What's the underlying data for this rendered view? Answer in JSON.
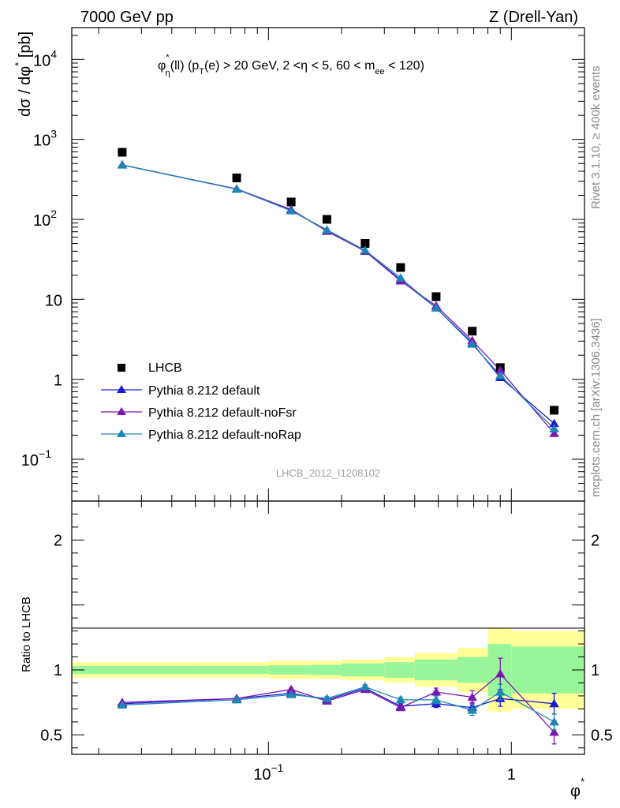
{
  "header": {
    "left_label": "7000 GeV pp",
    "right_label": "Z (Drell-Yan)"
  },
  "side_labels": {
    "rivet": "Rivet 3.1.10, ≥ 400k events",
    "mcplots": "mcplots.cern.ch [arXiv:1306.3436]"
  },
  "colors": {
    "data": "#000000",
    "default": "#1c1cd2",
    "noFsr": "#7a18b4",
    "noRap": "#1c87b4",
    "band_yellow": "#ffff99",
    "band_green": "#99f599"
  },
  "chart_data": [
    {
      "type": "scatter",
      "panel": "main",
      "title": "φ*η(ll) (pT(e) > 20 GeV, 2 <η < 5, 60 < mee < 120)",
      "title_parts": {
        "phi": "φ",
        "star": "*",
        "eta_sub": "η",
        "ll": "(ll) (p",
        "T_sub": "T",
        "rest": "(e) > 20 GeV, 2 <η < 5, 60 < m",
        "ee_sub": "ee",
        "end": " < 120)"
      },
      "ylabel": "dσ / dφ* [pb]",
      "ylabel_parts": {
        "main": "dσ / dφ",
        "star": "*",
        "unit": " [pb]"
      },
      "xlabel": "φ*",
      "xlabel_parts": {
        "phi": "φ",
        "star": "*"
      },
      "xscale": "log",
      "yscale": "log",
      "xlim": [
        0.0155,
        2.0
      ],
      "ylim": [
        0.03,
        25000
      ],
      "y_ticks": [
        {
          "value": 10000,
          "base": "10",
          "exp": "4"
        },
        {
          "value": 1000,
          "base": "10",
          "exp": "3"
        },
        {
          "value": 100,
          "base": "10",
          "exp": "2"
        },
        {
          "value": 10,
          "base": "10",
          "exp": ""
        },
        {
          "value": 1,
          "base": "1",
          "exp": ""
        },
        {
          "value": 0.1,
          "base": "10",
          "exp": "−1"
        }
      ],
      "x": [
        0.025,
        0.074,
        0.124,
        0.174,
        0.25,
        0.35,
        0.49,
        0.69,
        0.9,
        1.5
      ],
      "series": [
        {
          "name": "LHCB",
          "marker": "square",
          "color_key": "data",
          "values": [
            690,
            330,
            165,
            100,
            50,
            25,
            10.8,
            4.0,
            1.4,
            0.41
          ]
        },
        {
          "name": "Pythia 8.212 default",
          "marker": "triangle",
          "color_key": "default",
          "values": [
            480,
            240,
            130,
            72,
            40,
            17.5,
            7.8,
            2.85,
            1.05,
            0.28
          ]
        },
        {
          "name": "Pythia 8.212 default-noFsr",
          "marker": "triangle",
          "color_key": "noFsr",
          "values": [
            480,
            240,
            133,
            71,
            40,
            17.0,
            8.3,
            3.05,
            1.3,
            0.21
          ]
        },
        {
          "name": "Pythia 8.212 default-noRap",
          "marker": "triangle",
          "color_key": "noRap",
          "values": [
            478,
            238,
            128,
            74,
            41,
            18.5,
            7.8,
            2.75,
            1.12,
            0.24
          ]
        }
      ],
      "watermark": "LHCB_2012_I1208102",
      "legend_position": "bottom-left"
    },
    {
      "type": "line",
      "panel": "ratio",
      "ylabel": "Ratio to LHCB",
      "xscale": "log",
      "xlim": [
        0.0155,
        2.0
      ],
      "ylim": [
        0.35,
        2.3
      ],
      "y_ticks": [
        {
          "value": 2,
          "label": "2"
        },
        {
          "value": 1,
          "label": "1"
        },
        {
          "value": 0.5,
          "label": "0.5"
        }
      ],
      "x_ticks": [
        {
          "value": 0.1,
          "base": "10",
          "exp": "−1"
        },
        {
          "value": 1,
          "base": "1",
          "exp": ""
        }
      ],
      "bands": {
        "edges": [
          0.0155,
          0.05,
          0.1,
          0.15,
          0.2,
          0.3,
          0.4,
          0.6,
          0.8,
          1.0,
          2.0
        ],
        "yellow_halfwidth": [
          0.06,
          0.06,
          0.07,
          0.07,
          0.08,
          0.1,
          0.13,
          0.17,
          0.32,
          0.3
        ],
        "green_halfwidth": [
          0.03,
          0.03,
          0.035,
          0.04,
          0.05,
          0.06,
          0.08,
          0.1,
          0.2,
          0.18
        ]
      },
      "series": [
        {
          "name": "Pythia 8.212 default",
          "color_key": "default",
          "values": [
            0.74,
            0.78,
            0.82,
            0.77,
            0.86,
            0.72,
            0.74,
            0.71,
            0.78,
            0.74
          ],
          "errors": [
            0.005,
            0.006,
            0.01,
            0.015,
            0.015,
            0.02,
            0.03,
            0.04,
            0.06,
            0.08
          ]
        },
        {
          "name": "Pythia 8.212 default-noFsr",
          "color_key": "noFsr",
          "values": [
            0.75,
            0.78,
            0.85,
            0.76,
            0.85,
            0.71,
            0.83,
            0.79,
            0.97,
            0.52
          ],
          "errors": [
            0.005,
            0.006,
            0.01,
            0.015,
            0.015,
            0.02,
            0.03,
            0.05,
            0.12,
            0.09
          ]
        },
        {
          "name": "Pythia 8.212 default-noRap",
          "color_key": "noRap",
          "values": [
            0.73,
            0.77,
            0.81,
            0.78,
            0.87,
            0.77,
            0.77,
            0.69,
            0.83,
            0.6
          ],
          "errors": [
            0.005,
            0.006,
            0.01,
            0.015,
            0.015,
            0.02,
            0.03,
            0.04,
            0.06,
            0.06
          ]
        }
      ]
    }
  ]
}
